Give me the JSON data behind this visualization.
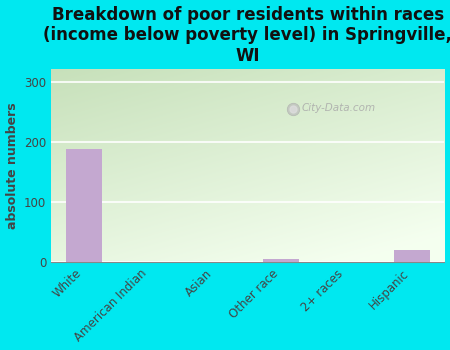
{
  "title": "Breakdown of poor residents within races\n(income below poverty level) in Springville,\nWI",
  "categories": [
    "White",
    "American Indian",
    "Asian",
    "Other race",
    "2+ races",
    "Hispanic"
  ],
  "values": [
    188,
    0,
    0,
    5,
    0,
    20
  ],
  "bar_color": "#c4a8d0",
  "ylabel": "absolute numbers",
  "ylim": [
    0,
    320
  ],
  "yticks": [
    0,
    100,
    200,
    300
  ],
  "background_color": "#00e8f0",
  "watermark_text": "City-Data.com",
  "title_fontsize": 12,
  "ylabel_fontsize": 9,
  "tick_fontsize": 8.5,
  "bar_width": 0.55,
  "grid_color": "#ffffff",
  "gradient_top": "#c8dfc0",
  "gradient_bottom": "#f4fdf0",
  "gradient_right": "#f0f8f0"
}
